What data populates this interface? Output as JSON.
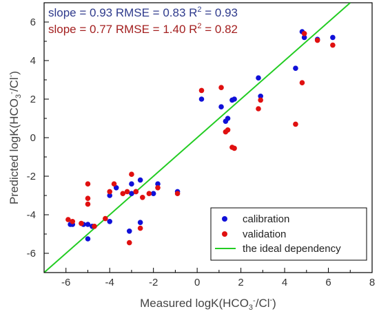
{
  "chart_data": {
    "type": "scatter",
    "xlabel": "Measured logK(HCO3-/Cl-)",
    "ylabel": "Predicted logK(HCO3-/Cl-)",
    "xlim": [
      -7,
      8
    ],
    "ylim": [
      -7,
      7
    ],
    "xticks": [
      -6,
      -4,
      -2,
      0,
      2,
      4,
      6,
      8
    ],
    "yticks": [
      -6,
      -4,
      -2,
      0,
      2,
      4,
      6
    ],
    "grid": false,
    "legend_position": "bottom-right",
    "annotations": [
      {
        "parts": [
          "slope = 0.93  RMSE = 0.83  R",
          "2",
          " = 0.93"
        ],
        "color": "#2e3a8c"
      },
      {
        "parts": [
          "slope = 0.77  RMSE = 1.40  R",
          "2",
          " = 0.82"
        ],
        "color": "#a31f1f"
      }
    ],
    "series": [
      {
        "name": "calibration",
        "color": "#1010d8",
        "marker": "circle",
        "points": [
          [
            -5.8,
            -4.5
          ],
          [
            -5.7,
            -4.5
          ],
          [
            -5.2,
            -4.5
          ],
          [
            -5.0,
            -4.5
          ],
          [
            -5.0,
            -5.25
          ],
          [
            -4.8,
            -4.6
          ],
          [
            -4.0,
            -4.35
          ],
          [
            -4.0,
            -3.0
          ],
          [
            -3.7,
            -2.6
          ],
          [
            -3.1,
            -4.85
          ],
          [
            -3.0,
            -2.4
          ],
          [
            -3.0,
            -2.9
          ],
          [
            -2.8,
            -2.8
          ],
          [
            -2.6,
            -4.4
          ],
          [
            -2.6,
            -2.2
          ],
          [
            -2.0,
            -2.9
          ],
          [
            -1.8,
            -2.4
          ],
          [
            -0.9,
            -2.8
          ],
          [
            0.2,
            2.0
          ],
          [
            1.1,
            1.6
          ],
          [
            1.3,
            0.85
          ],
          [
            1.4,
            1.0
          ],
          [
            1.6,
            1.95
          ],
          [
            1.7,
            2.0
          ],
          [
            2.8,
            3.1
          ],
          [
            2.9,
            2.15
          ],
          [
            4.5,
            3.6
          ],
          [
            4.8,
            5.5
          ],
          [
            4.9,
            5.2
          ],
          [
            5.5,
            5.1
          ],
          [
            6.2,
            5.2
          ]
        ]
      },
      {
        "name": "validation",
        "color": "#e01010",
        "marker": "circle",
        "points": [
          [
            -5.9,
            -4.25
          ],
          [
            -5.7,
            -4.35
          ],
          [
            -5.3,
            -4.45
          ],
          [
            -5.0,
            -2.4
          ],
          [
            -5.0,
            -3.15
          ],
          [
            -5.0,
            -3.45
          ],
          [
            -4.7,
            -4.6
          ],
          [
            -4.2,
            -4.2
          ],
          [
            -4.0,
            -2.8
          ],
          [
            -3.8,
            -2.4
          ],
          [
            -3.4,
            -2.9
          ],
          [
            -3.2,
            -2.8
          ],
          [
            -3.1,
            -5.45
          ],
          [
            -3.0,
            -1.9
          ],
          [
            -2.8,
            -2.8
          ],
          [
            -2.6,
            -4.7
          ],
          [
            -2.5,
            -3.1
          ],
          [
            -2.2,
            -2.9
          ],
          [
            -1.8,
            -2.6
          ],
          [
            -0.9,
            -2.9
          ],
          [
            0.2,
            2.45
          ],
          [
            1.1,
            2.6
          ],
          [
            1.3,
            0.3
          ],
          [
            1.4,
            0.4
          ],
          [
            1.6,
            -0.5
          ],
          [
            1.7,
            -0.55
          ],
          [
            2.8,
            1.5
          ],
          [
            2.9,
            1.95
          ],
          [
            4.5,
            0.7
          ],
          [
            4.8,
            2.85
          ],
          [
            4.9,
            5.4
          ],
          [
            5.5,
            5.05
          ],
          [
            6.2,
            4.8
          ]
        ]
      },
      {
        "name": "the ideal dependency",
        "color": "#22cc22",
        "type": "line",
        "points": [
          [
            -7,
            -7
          ],
          [
            7,
            7
          ]
        ]
      }
    ]
  }
}
